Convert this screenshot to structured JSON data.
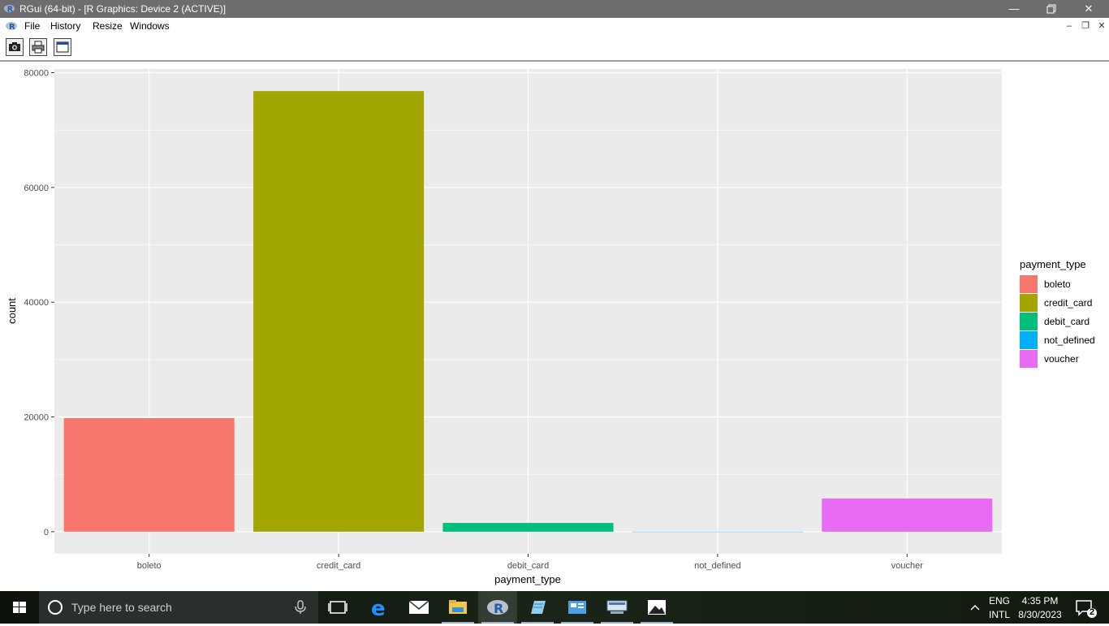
{
  "window": {
    "title": "RGui (64-bit) - [R Graphics: Device 2 (ACTIVE)]",
    "controls": [
      "minimize-icon",
      "restore-icon",
      "close-icon"
    ]
  },
  "menubar": {
    "items": [
      "File",
      "History",
      "Resize",
      "Windows"
    ]
  },
  "toolbar": {
    "buttons": [
      "camera-icon",
      "printer-icon",
      "window-icon"
    ]
  },
  "chart_data": {
    "type": "bar",
    "categories": [
      "boleto",
      "credit_card",
      "debit_card",
      "not_defined",
      "voucher"
    ],
    "values": [
      19784,
      76795,
      1529,
      3,
      5775
    ],
    "colors": [
      "#F8766D",
      "#A3A500",
      "#00BF7D",
      "#00B0F6",
      "#E76BF3"
    ],
    "xlabel": "payment_type",
    "ylabel": "count",
    "ylim": [
      -3840,
      80640
    ],
    "yticks": [
      0,
      20000,
      40000,
      60000,
      80000
    ],
    "ytick_labels": [
      "0",
      "20000",
      "40000",
      "60000",
      "80000"
    ],
    "grid": true,
    "panel_background": "#EBEBEB",
    "legend": {
      "title": "payment_type",
      "position": "right",
      "entries": [
        "boleto",
        "credit_card",
        "debit_card",
        "not_defined",
        "voucher"
      ]
    }
  },
  "taskbar": {
    "search_placeholder": "Type here to search",
    "apps": [
      "task-view-icon",
      "edge-icon",
      "mail-icon",
      "file-explorer-icon",
      "r-icon",
      "notepad-icon",
      "control-panel-icon",
      "network-icon",
      "photos-icon"
    ],
    "active_app": "r-icon",
    "lang_top": "ENG",
    "lang_bottom": "INTL",
    "time": "4:35 PM",
    "date": "8/30/2023",
    "notification_count": "2"
  }
}
